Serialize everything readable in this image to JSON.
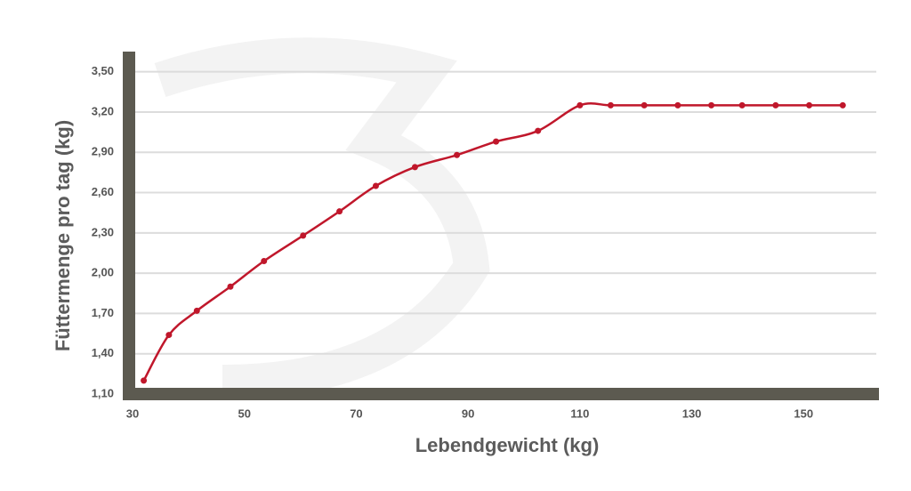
{
  "chart_data": {
    "type": "line",
    "x_label": "Lebendgewicht (kg)",
    "y_label": "Füttermenge pro tag (kg)",
    "x": [
      32,
      36.5,
      41.5,
      47.5,
      53.5,
      60.5,
      67,
      73.5,
      80.5,
      88,
      95,
      102.5,
      110,
      115.5,
      121.5,
      127.5,
      133.5,
      139,
      145,
      151,
      157
    ],
    "series": [
      {
        "color": "#c0172b",
        "values": [
          1.2,
          1.54,
          1.72,
          1.9,
          2.09,
          2.28,
          2.46,
          2.65,
          2.79,
          2.88,
          2.98,
          3.06,
          3.25,
          3.25,
          3.25,
          3.25,
          3.25,
          3.25,
          3.25,
          3.25,
          3.25
        ]
      }
    ],
    "xlim": [
      30,
      163
    ],
    "ylim": [
      1.1,
      3.65
    ],
    "xticks": [
      30,
      50,
      70,
      90,
      110,
      130,
      150
    ],
    "yticks": [
      {
        "value": 1.1,
        "label": "1,10"
      },
      {
        "value": 1.4,
        "label": "1,40"
      },
      {
        "value": 1.7,
        "label": "1,70"
      },
      {
        "value": 2.0,
        "label": "2,00"
      },
      {
        "value": 2.3,
        "label": "2,30"
      },
      {
        "value": 2.6,
        "label": "2,60"
      },
      {
        "value": 2.9,
        "label": "2,90"
      },
      {
        "value": 3.2,
        "label": "3,20"
      },
      {
        "value": 3.5,
        "label": "3,50"
      }
    ],
    "grid": true
  }
}
